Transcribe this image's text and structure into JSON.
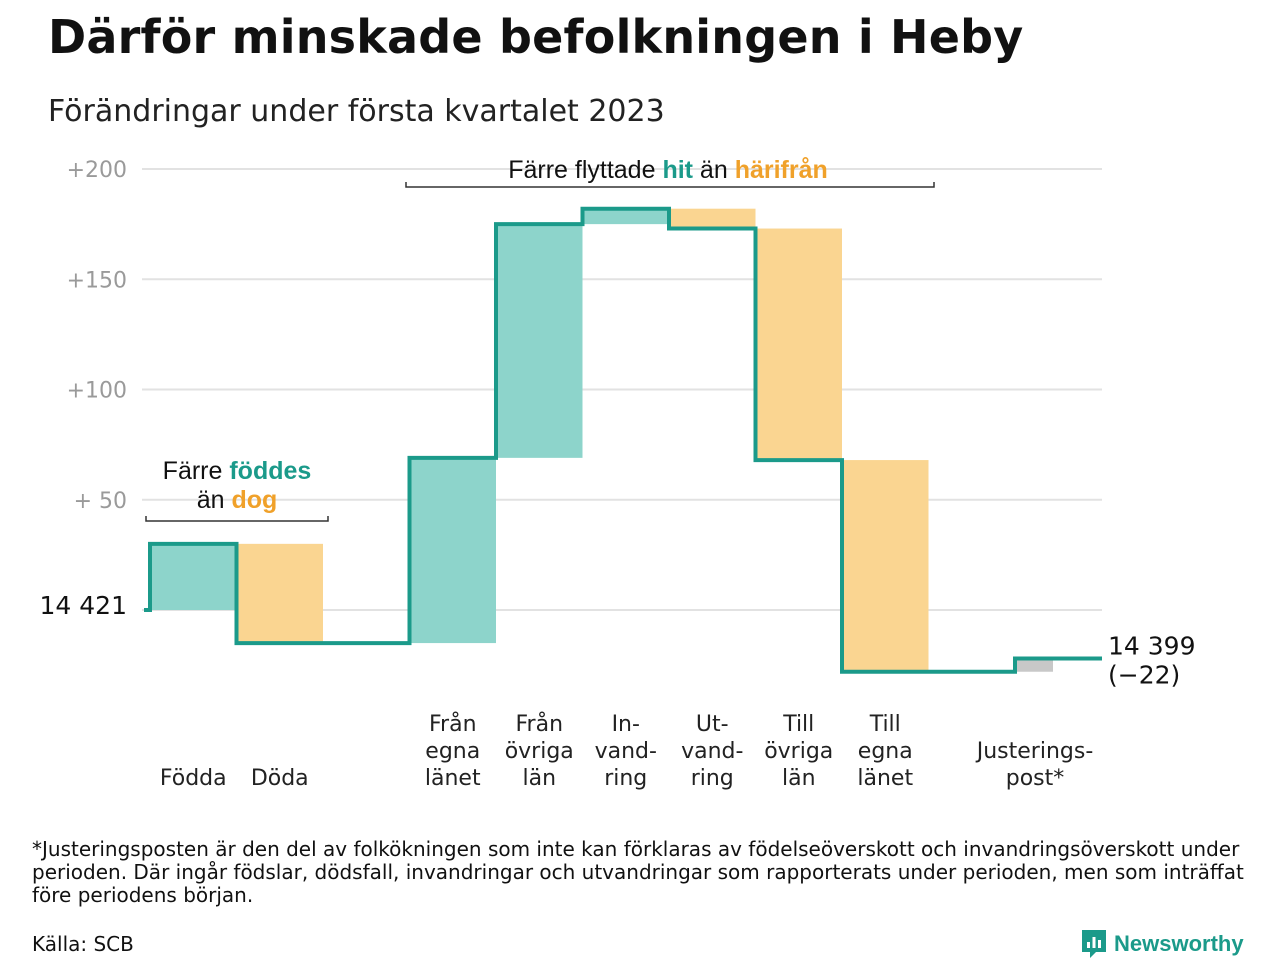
{
  "header": {
    "title": "Därför minskade befolkningen i Heby",
    "subtitle": "Förändringar under första kvartalet 2023"
  },
  "chart_data": {
    "type": "waterfall",
    "start": {
      "label": "14 421",
      "value": 14421
    },
    "end": {
      "label": "14 399",
      "change_label": "(−22)",
      "value": 14399
    },
    "ylim": [
      -28,
      200
    ],
    "yticks": [
      {
        "value": 200,
        "label": "+200"
      },
      {
        "value": 150,
        "label": "+150"
      },
      {
        "value": 100,
        "label": "+100"
      },
      {
        "value": 50,
        "label": "+ 50"
      },
      {
        "value": 0,
        "label": ""
      }
    ],
    "steps": [
      {
        "key": "fodda",
        "label": [
          "Födda"
        ],
        "value": 30,
        "kind": "in"
      },
      {
        "key": "doda",
        "label": [
          "Döda"
        ],
        "value": -45,
        "kind": "out"
      },
      {
        "key": "gap1",
        "label": [],
        "value": 0,
        "kind": "gap"
      },
      {
        "key": "fran_egna",
        "label": [
          "Från",
          "egna",
          "länet"
        ],
        "value": 84,
        "kind": "in"
      },
      {
        "key": "fran_ovriga",
        "label": [
          "Från",
          "övriga",
          "län"
        ],
        "value": 106,
        "kind": "in"
      },
      {
        "key": "invandring",
        "label": [
          "In-",
          "vand-",
          "ring"
        ],
        "value": 7,
        "kind": "in"
      },
      {
        "key": "utvandring",
        "label": [
          "Ut-",
          "vand-",
          "ring"
        ],
        "value": -9,
        "kind": "out"
      },
      {
        "key": "till_ovriga",
        "label": [
          "Till",
          "övriga",
          "län"
        ],
        "value": -105,
        "kind": "out"
      },
      {
        "key": "till_egna",
        "label": [
          "Till",
          "egna",
          "länet"
        ],
        "value": -96,
        "kind": "out"
      },
      {
        "key": "gap2",
        "label": [],
        "value": 0,
        "kind": "gap"
      },
      {
        "key": "justeringspost",
        "label": [
          "Justerings-",
          "post*"
        ],
        "value": 6,
        "kind": "adjust"
      }
    ],
    "annotations": [
      {
        "key": "fodda_doda",
        "lines": [
          [
            {
              "text": "Färre ",
              "style": "plain"
            },
            {
              "text": "föddes",
              "style": "teal"
            }
          ],
          [
            {
              "text": "än ",
              "style": "plain"
            },
            {
              "text": "dog",
              "style": "orange"
            }
          ]
        ]
      },
      {
        "key": "flyttade",
        "lines": [
          [
            {
              "text": "Färre flyttade ",
              "style": "plain"
            },
            {
              "text": "hit",
              "style": "teal"
            },
            {
              "text": " än ",
              "style": "plain"
            },
            {
              "text": "härifrån",
              "style": "orange"
            }
          ]
        ]
      }
    ],
    "colors": {
      "in_fill": "#8dd4cb",
      "out_fill": "#fad591",
      "adjust_fill": "#c8c8c8",
      "line": "#1b9a8a",
      "grid": "#e2e2e2"
    }
  },
  "footnote": "*Justeringsposten är den del av folkökningen som inte kan förklaras av födelseöverskott och invandringsöverskott under perioden. Där ingår födslar, dödsfall, invandringar och utvandringar som rapporterats under perioden, men som inträffat före periodens början.",
  "source": "Källa: SCB",
  "brand": {
    "name": "Newsworthy",
    "icon": "newsworthy-logo-icon"
  }
}
